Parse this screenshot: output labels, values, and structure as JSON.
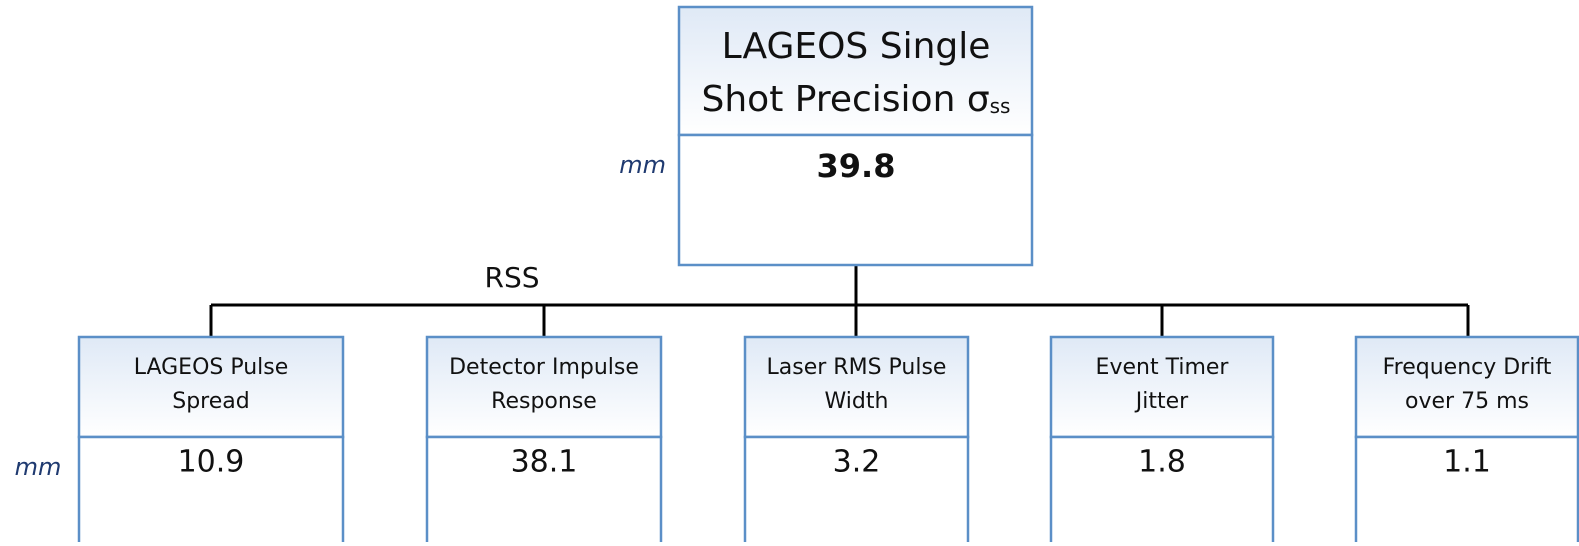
{
  "root": {
    "title_lines": [
      "LAGEOS Single",
      "Shot Precision σ"
    ],
    "subscript": "ss",
    "unit": "mm",
    "value": 39.8
  },
  "connector_label": "RSS",
  "children_unit": "mm",
  "children": [
    {
      "label_lines": [
        "LAGEOS Pulse",
        "Spread"
      ],
      "value": 10.9
    },
    {
      "label_lines": [
        "Detector Impulse",
        "Response"
      ],
      "value": 38.1
    },
    {
      "label_lines": [
        "Laser RMS Pulse",
        "Width"
      ],
      "value": 3.2
    },
    {
      "label_lines": [
        "Event Timer",
        "Jitter"
      ],
      "value": 1.8
    },
    {
      "label_lines": [
        "Frequency Drift",
        "over 75 ms"
      ],
      "value": 1.1
    }
  ]
}
